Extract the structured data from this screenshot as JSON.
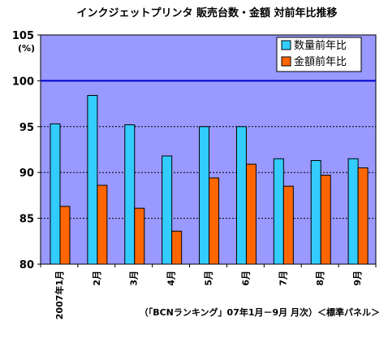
{
  "chart_data": {
    "type": "bar",
    "title": "インクジェットプリンタ 販売台数・金額 対前年比推移",
    "y_unit": "(%)",
    "ylim": [
      80,
      105
    ],
    "yticks": [
      80,
      85,
      90,
      95,
      100,
      105
    ],
    "reference_line": 100,
    "grid": "dashed horizontal",
    "legend_position": "top-right",
    "categories": [
      "2007年1月",
      "2月",
      "3月",
      "4月",
      "5月",
      "6月",
      "7月",
      "8月",
      "9月"
    ],
    "series": [
      {
        "name": "数量前年比",
        "color": "#33CCFF",
        "values": [
          95.3,
          98.4,
          95.2,
          91.8,
          95.0,
          95.0,
          91.5,
          91.3,
          91.5
        ]
      },
      {
        "name": "金額前年比",
        "color": "#FF6600",
        "values": [
          86.3,
          88.6,
          86.1,
          83.6,
          89.4,
          90.9,
          88.5,
          89.7,
          90.5
        ]
      }
    ],
    "source_note": "（「BCNランキング」07年1月－9月 月次）＜標準パネル＞"
  },
  "colors": {
    "plot_background": "#9999FF",
    "reference_line": "#0000CC",
    "bar_outline": "#000000"
  }
}
